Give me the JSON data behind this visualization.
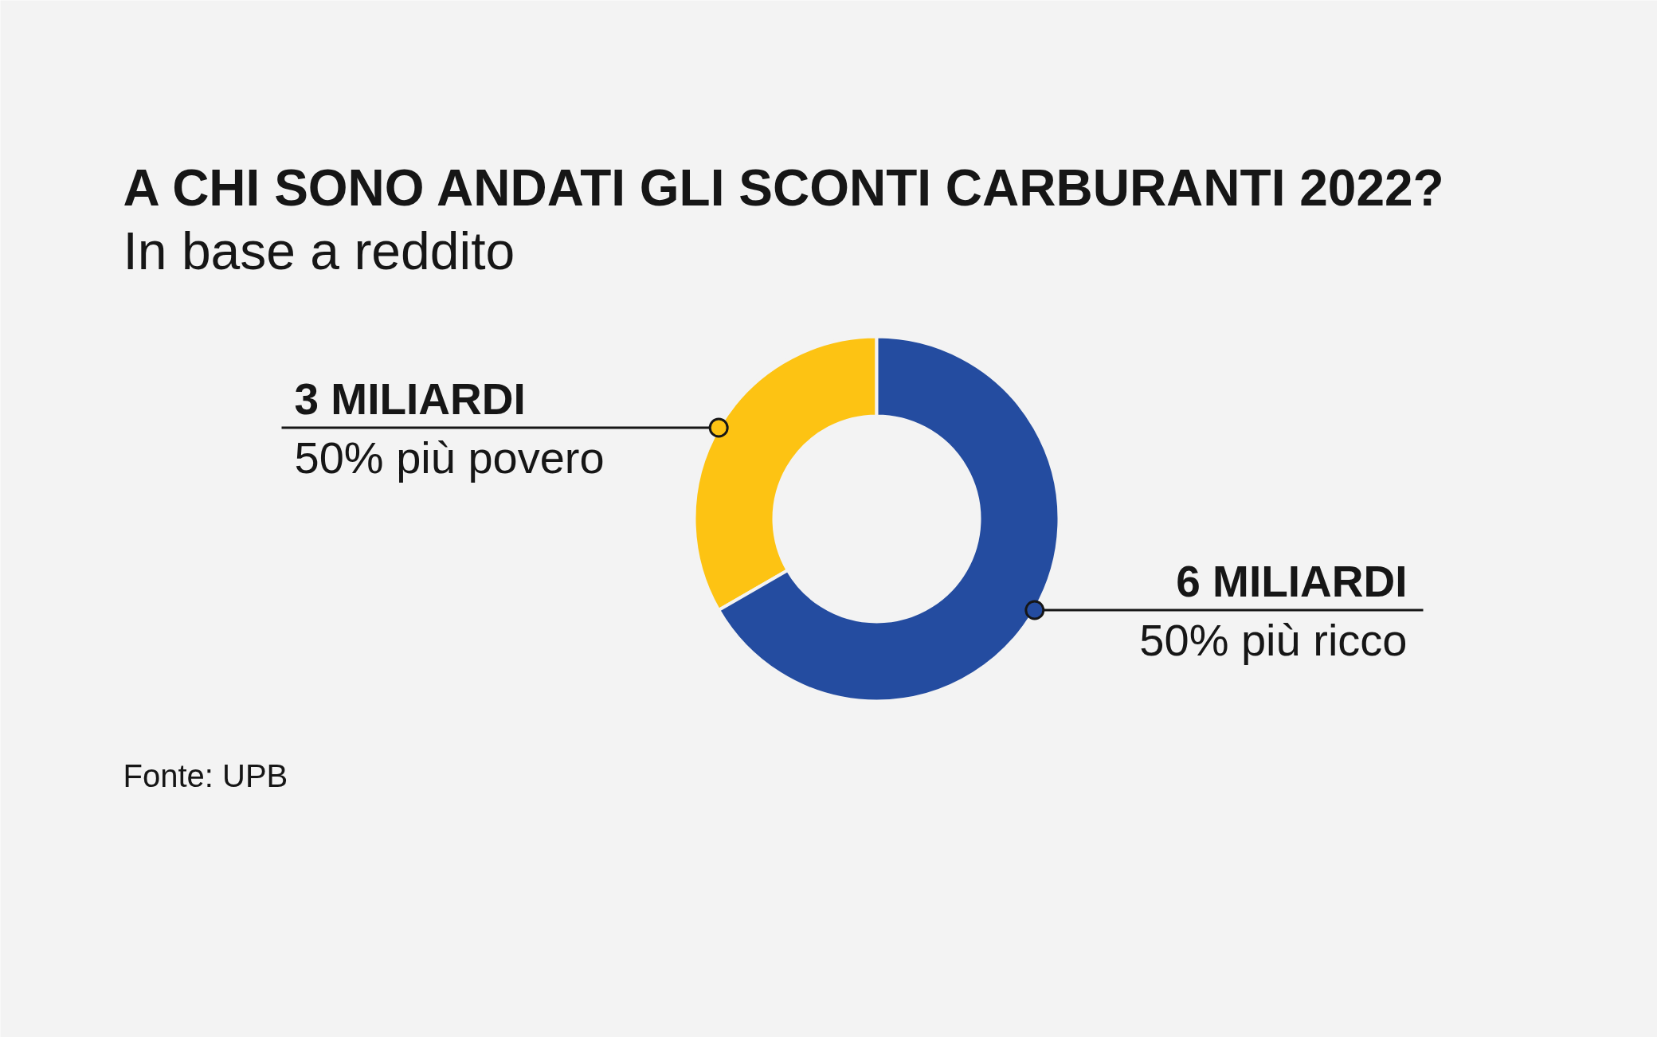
{
  "chart_data": {
    "type": "donut",
    "title": "A CHI SONO ANDATI GLI SCONTI CARBURANTI 2022?",
    "subtitle": "In base a reddito",
    "categories": [
      "50% più povero",
      "50% più ricco"
    ],
    "values": [
      3,
      6
    ],
    "colors": [
      "#fdc313",
      "#244ca0"
    ],
    "value_labels": [
      "3 MILIARDI",
      "6 MILIARDI"
    ],
    "annotations": [
      "Fonte: UPB"
    ]
  }
}
